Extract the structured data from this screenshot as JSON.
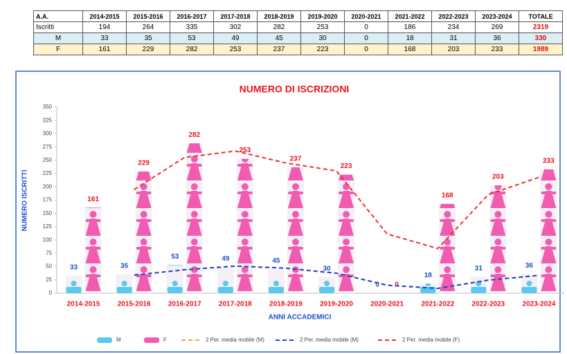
{
  "table": {
    "header": [
      "A.A.",
      "2014-2015",
      "2015-2016",
      "2016-2017",
      "2017-2018",
      "2018-2019",
      "2019-2020",
      "2020-2021",
      "2021-2022",
      "2022-2023",
      "2023-2024",
      "TOTALE"
    ],
    "rows": [
      [
        "Iscritti",
        "194",
        "264",
        "335",
        "302",
        "282",
        "253",
        "0",
        "186",
        "234",
        "269",
        "2319"
      ],
      [
        "M",
        "33",
        "35",
        "53",
        "49",
        "45",
        "30",
        "0",
        "18",
        "31",
        "36",
        "330"
      ],
      [
        "F",
        "161",
        "229",
        "282",
        "253",
        "237",
        "223",
        "0",
        "168",
        "203",
        "233",
        "1989"
      ]
    ]
  },
  "chart_data": {
    "type": "pictograph",
    "title": "NUMERO DI ISCRIZIONI",
    "x_label": "ANNI ACCADEMICI",
    "y_label": "NUMERO ISCRITTI",
    "categories": [
      "2014-2015",
      "2015-2016",
      "2016-2017",
      "2017-2018",
      "2018-2019",
      "2019-2020",
      "2020-2021",
      "2021-2022",
      "2022-2023",
      "2023-2024"
    ],
    "series": [
      {
        "name": "M",
        "color": "#5ac8ef",
        "label_color": "#1f4fc8",
        "kind": "bar",
        "values": [
          33,
          35,
          53,
          49,
          45,
          30,
          0,
          18,
          31,
          36
        ]
      },
      {
        "name": "F",
        "color": "#f25cb0",
        "label_color": "#e8141c",
        "kind": "bar",
        "values": [
          161,
          229,
          282,
          253,
          237,
          223,
          0,
          168,
          203,
          233
        ]
      },
      {
        "name": "2 Per. media mobile (M)",
        "color": "#f5a040",
        "kind": "line",
        "values": [
          null,
          34,
          44,
          51,
          47,
          37.5,
          15,
          9,
          24.5,
          33.5
        ]
      },
      {
        "name": "2 Per. media mobile (M)",
        "color": "#1f3fc8",
        "kind": "line",
        "values": [
          null,
          34,
          44,
          51,
          47,
          37.5,
          15,
          9,
          24.5,
          33.5
        ]
      },
      {
        "name": "2 Per. media mobile (F)",
        "color": "#f03030",
        "kind": "line",
        "values": [
          null,
          195,
          255.5,
          267.5,
          245,
          230,
          111.5,
          84,
          185.5,
          218
        ]
      }
    ],
    "ylim": [
      0,
      350
    ],
    "yticks": [
      0,
      25,
      50,
      75,
      100,
      125,
      150,
      175,
      200,
      225,
      250,
      275,
      300,
      325,
      350
    ],
    "grid": false
  }
}
